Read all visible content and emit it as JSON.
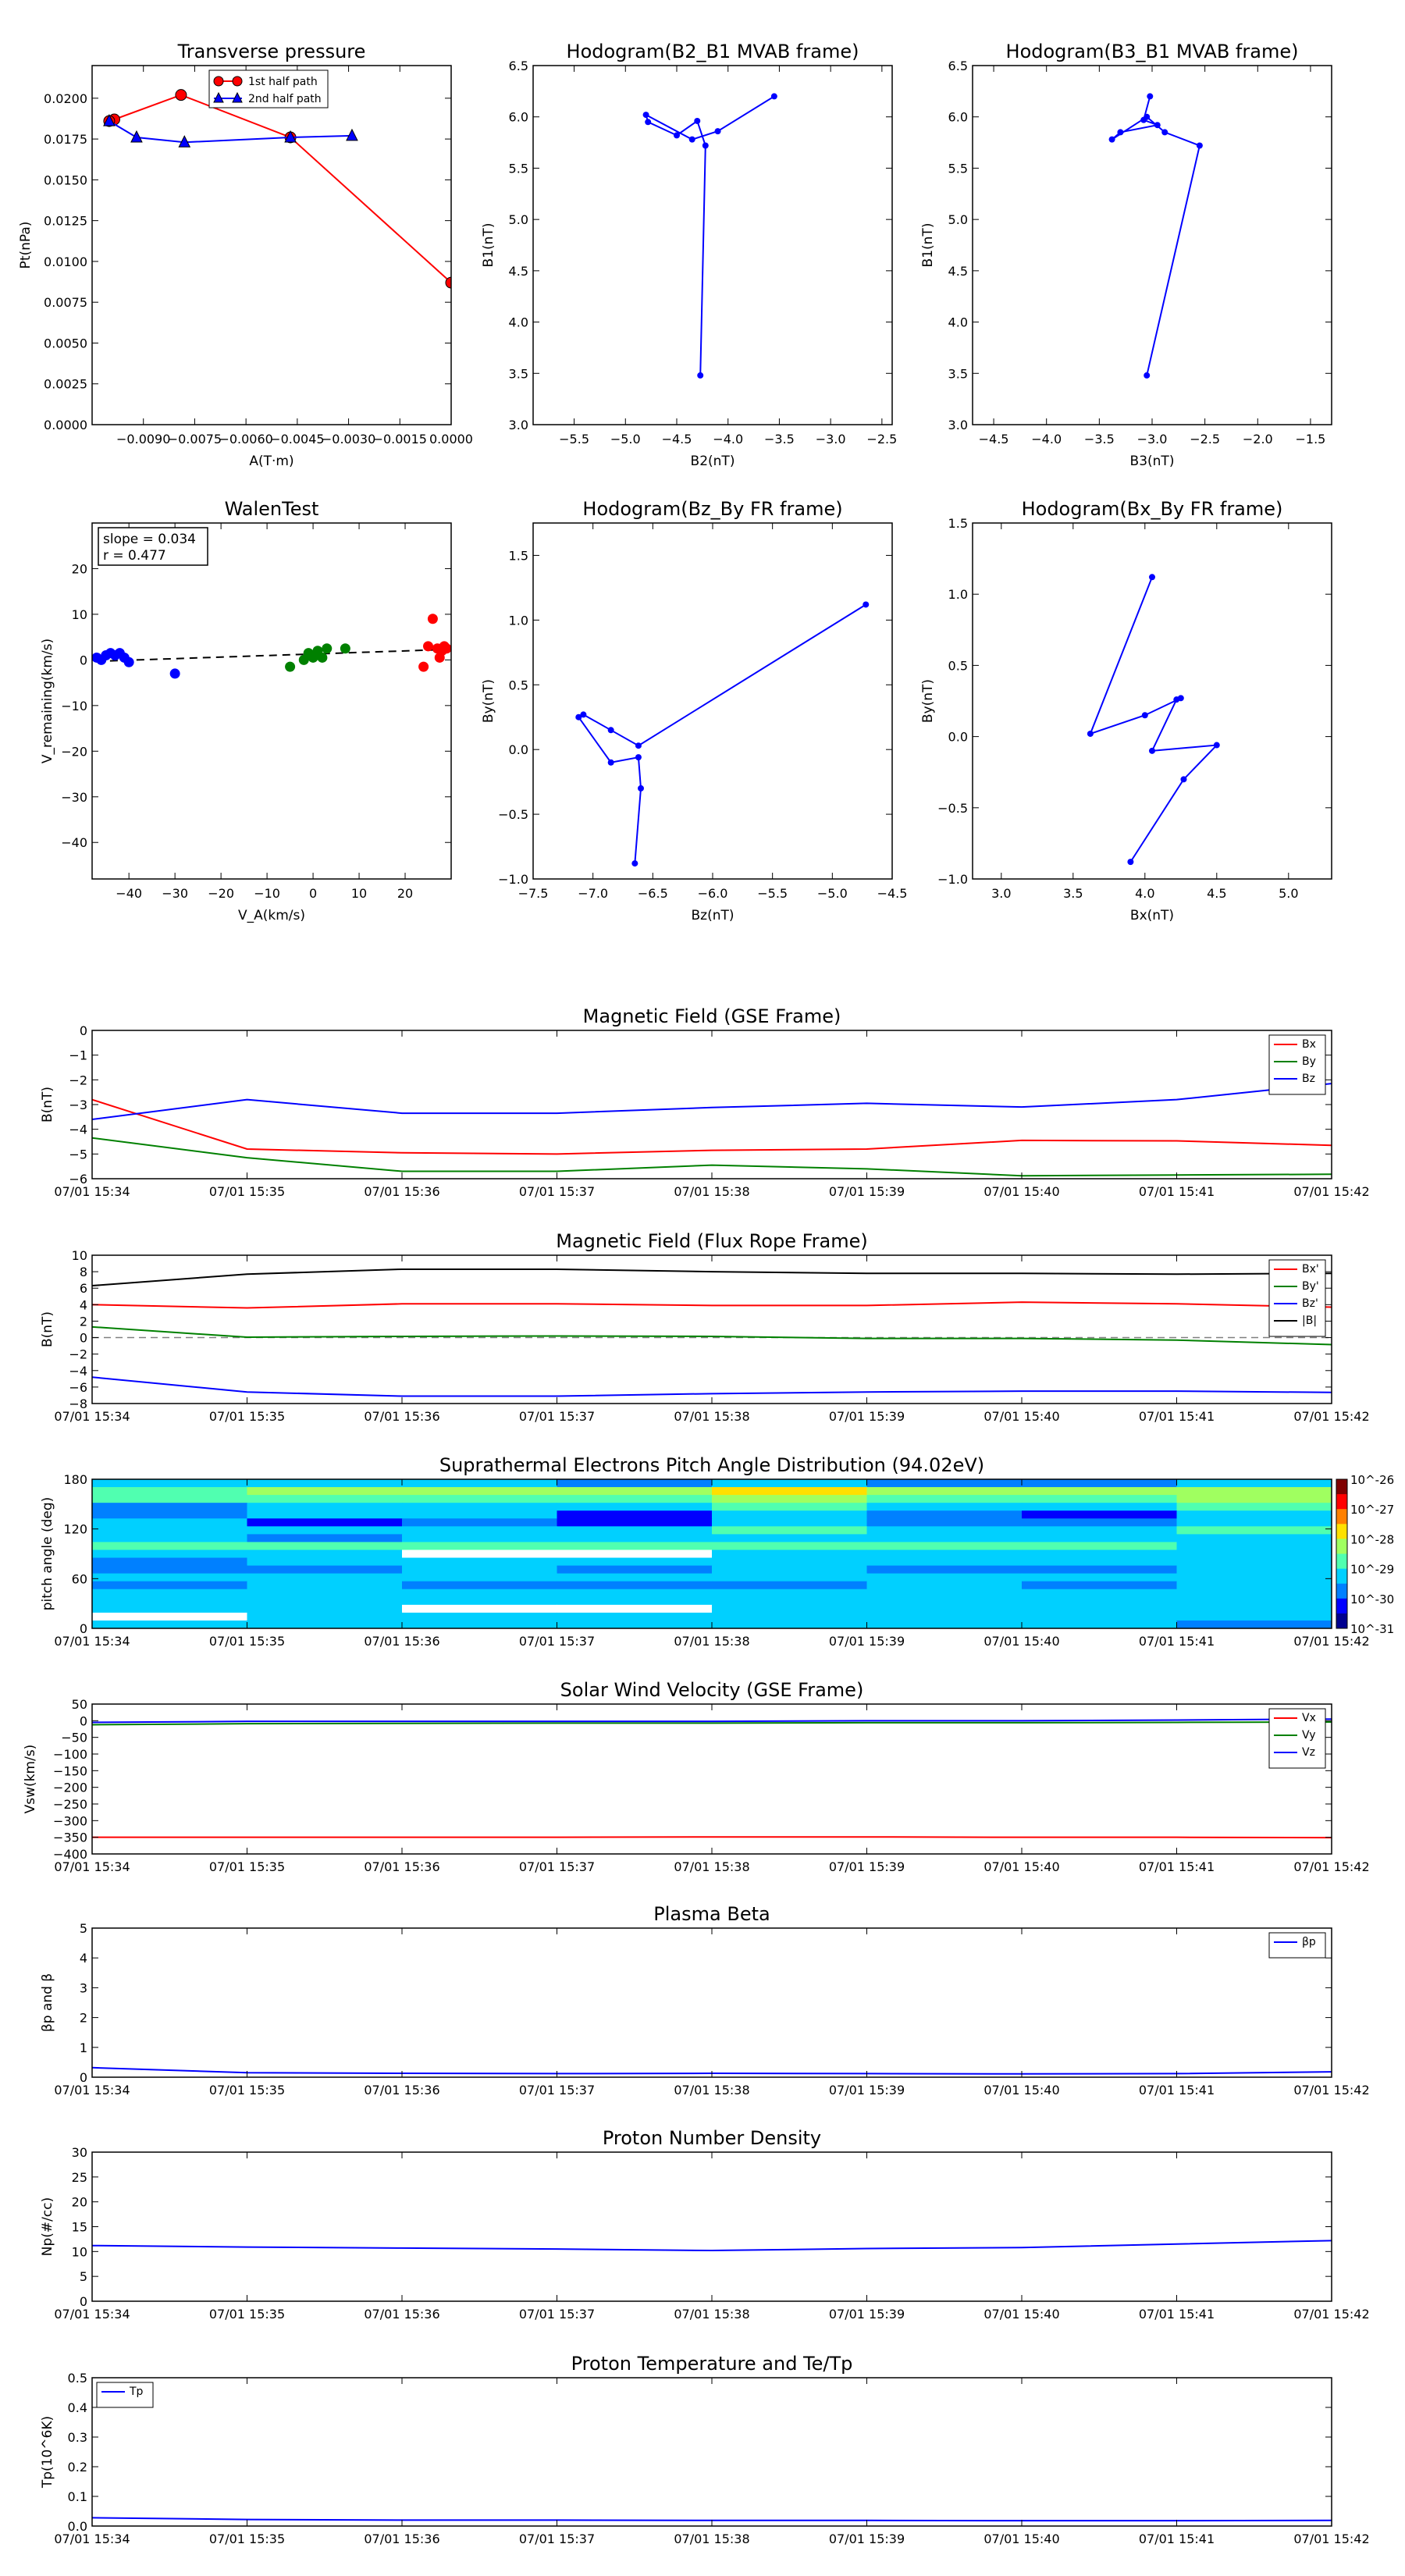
{
  "times": [
    "07/01 15:34",
    "07/01 15:35",
    "07/01 15:36",
    "07/01 15:37",
    "07/01 15:38",
    "07/01 15:39",
    "07/01 15:40",
    "07/01 15:41",
    "07/01 15:42"
  ],
  "colors": {
    "red": "#ff0000",
    "green": "#008000",
    "blue": "#0000ff",
    "black": "#000000",
    "gray": "#808080"
  },
  "chart_data": [
    {
      "id": "pt",
      "type": "line",
      "title": "Transverse pressure",
      "xlabel": "A(T·m)",
      "ylabel": "Pt(nPa)",
      "xlim": [
        -0.0105,
        0.0
      ],
      "ylim": [
        0.0,
        0.022
      ],
      "xticks": [
        -0.009,
        -0.0075,
        -0.006,
        -0.0045,
        -0.003,
        -0.0015,
        0.0
      ],
      "xticklabels": [
        "−0.0090",
        "−0.0075",
        "−0.0060",
        "−0.0045",
        "−0.0030",
        "−0.0015",
        "0.0000"
      ],
      "yticks": [
        0.0,
        0.0025,
        0.005,
        0.0075,
        0.01,
        0.0125,
        0.015,
        0.0175,
        0.02
      ],
      "yticklabels": [
        "0.0000",
        "0.0025",
        "0.0050",
        "0.0075",
        "0.0100",
        "0.0125",
        "0.0150",
        "0.0175",
        "0.0200"
      ],
      "legend": "top-center",
      "series": [
        {
          "name": "1st half path",
          "color": "red",
          "marker": "circle",
          "x": [
            0.0,
            -0.0047,
            -0.0079,
            -0.00985,
            -0.01
          ],
          "y": [
            0.0087,
            0.0176,
            0.0202,
            0.0187,
            0.0186
          ]
        },
        {
          "name": "2nd half path",
          "color": "blue",
          "marker": "triangle",
          "x": [
            -0.01,
            -0.0092,
            -0.0078,
            -0.0047,
            -0.0029
          ],
          "y": [
            0.0186,
            0.0176,
            0.0173,
            0.0176,
            0.0177
          ]
        }
      ]
    },
    {
      "id": "h21",
      "type": "line",
      "title": "Hodogram(B2_B1 MVAB frame)",
      "xlabel": "B2(nT)",
      "ylabel": "B1(nT)",
      "xlim": [
        -5.9,
        -2.4
      ],
      "ylim": [
        3.0,
        6.5
      ],
      "xticks": [
        -5.5,
        -5.0,
        -4.5,
        -4.0,
        -3.5,
        -3.0,
        -2.5
      ],
      "xticklabels": [
        "−5.5",
        "−5.0",
        "−4.5",
        "−4.0",
        "−3.5",
        "−3.0",
        "−2.5"
      ],
      "yticks": [
        3.0,
        3.5,
        4.0,
        4.5,
        5.0,
        5.5,
        6.0,
        6.5
      ],
      "yticklabels": [
        "3.0",
        "3.5",
        "4.0",
        "4.5",
        "5.0",
        "5.5",
        "6.0",
        "6.5"
      ],
      "series": [
        {
          "name": "",
          "color": "blue",
          "marker": "dot",
          "x": [
            -3.55,
            -4.1,
            -4.35,
            -4.8,
            -4.78,
            -4.5,
            -4.3,
            -4.22,
            -4.27
          ],
          "y": [
            6.2,
            5.86,
            5.78,
            6.02,
            5.95,
            5.82,
            5.96,
            5.72,
            3.48
          ]
        }
      ]
    },
    {
      "id": "h31",
      "type": "line",
      "title": "Hodogram(B3_B1 MVAB frame)",
      "xlabel": "B3(nT)",
      "ylabel": "B1(nT)",
      "xlim": [
        -4.7,
        -1.3
      ],
      "ylim": [
        3.0,
        6.5
      ],
      "xticks": [
        -4.5,
        -4.0,
        -3.5,
        -3.0,
        -2.5,
        -2.0,
        -1.5
      ],
      "xticklabels": [
        "−4.5",
        "−4.0",
        "−3.5",
        "−3.0",
        "−2.5",
        "−2.0",
        "−1.5"
      ],
      "yticks": [
        3.0,
        3.5,
        4.0,
        4.5,
        5.0,
        5.5,
        6.0,
        6.5
      ],
      "yticklabels": [
        "3.0",
        "3.5",
        "4.0",
        "4.5",
        "5.0",
        "5.5",
        "6.0",
        "6.5"
      ],
      "series": [
        {
          "name": "",
          "color": "blue",
          "marker": "dot",
          "x": [
            -3.02,
            -3.08,
            -2.95,
            -3.3,
            -3.38,
            -3.05,
            -2.88,
            -2.55,
            -3.05
          ],
          "y": [
            6.2,
            5.97,
            5.92,
            5.85,
            5.78,
            6.0,
            5.85,
            5.72,
            3.48
          ]
        }
      ]
    },
    {
      "id": "walen",
      "type": "scatter",
      "title": "WalenTest",
      "xlabel": "V_A(km/s)",
      "ylabel": "V_remaining(km/s)",
      "xlim": [
        -48,
        30
      ],
      "ylim": [
        -48,
        30
      ],
      "xticks": [
        -40,
        -30,
        -20,
        -10,
        0,
        10,
        20
      ],
      "xticklabels": [
        "−40",
        "−30",
        "−20",
        "−10",
        "0",
        "10",
        "20"
      ],
      "yticks": [
        -40,
        -30,
        -20,
        -10,
        0,
        10,
        20
      ],
      "yticklabels": [
        "−40",
        "−30",
        "−20",
        "−10",
        "0",
        "10",
        "20"
      ],
      "annotation": [
        "slope = 0.034",
        "r = 0.477"
      ],
      "fit": {
        "slope": 0.034,
        "x": [
          -47,
          29
        ]
      },
      "groups": [
        {
          "color": "blue",
          "x": [
            -46,
            -45,
            -44,
            -43,
            -42,
            -41,
            -40,
            -47,
            -30
          ],
          "y": [
            0,
            1,
            1.5,
            1,
            1.5,
            0.5,
            -0.5,
            0.5,
            -3
          ]
        },
        {
          "color": "green",
          "x": [
            -5,
            -2,
            -1,
            0,
            1,
            2,
            3,
            7
          ],
          "y": [
            -1.5,
            0,
            1.5,
            0.5,
            2,
            0.5,
            2.5,
            2.5
          ]
        },
        {
          "color": "red",
          "x": [
            24,
            25,
            26,
            27,
            27.5,
            28,
            28.5,
            29
          ],
          "y": [
            -1.5,
            3,
            9,
            2.5,
            0.5,
            2,
            3,
            2.5
          ]
        }
      ]
    },
    {
      "id": "hzy",
      "type": "line",
      "title": "Hodogram(Bz_By FR frame)",
      "xlabel": "Bz(nT)",
      "ylabel": "By(nT)",
      "xlim": [
        -7.5,
        -4.5
      ],
      "ylim": [
        -1.0,
        1.75
      ],
      "xticks": [
        -7.5,
        -7.0,
        -6.5,
        -6.0,
        -5.5,
        -5.0,
        -4.5
      ],
      "xticklabels": [
        "−7.5",
        "−7.0",
        "−6.5",
        "−6.0",
        "−5.5",
        "−5.0",
        "−4.5"
      ],
      "yticks": [
        -1.0,
        -0.5,
        0.0,
        0.5,
        1.0,
        1.5
      ],
      "yticklabels": [
        "−1.0",
        "−0.5",
        "0.0",
        "0.5",
        "1.0",
        "1.5"
      ],
      "series": [
        {
          "name": "",
          "color": "blue",
          "marker": "dot",
          "x": [
            -4.72,
            -6.62,
            -6.85,
            -7.08,
            -7.12,
            -6.85,
            -6.62,
            -6.6,
            -6.65
          ],
          "y": [
            1.12,
            0.03,
            0.15,
            0.27,
            0.25,
            -0.1,
            -0.06,
            -0.3,
            -0.88
          ]
        }
      ]
    },
    {
      "id": "hxy",
      "type": "line",
      "title": "Hodogram(Bx_By FR frame)",
      "xlabel": "Bx(nT)",
      "ylabel": "By(nT)",
      "xlim": [
        2.8,
        5.3
      ],
      "ylim": [
        -1.0,
        1.5
      ],
      "xticks": [
        3.0,
        3.5,
        4.0,
        4.5,
        5.0
      ],
      "xticklabels": [
        "3.0",
        "3.5",
        "4.0",
        "4.5",
        "5.0"
      ],
      "yticks": [
        -1.0,
        -0.5,
        0.0,
        0.5,
        1.0,
        1.5
      ],
      "yticklabels": [
        "−1.0",
        "−0.5",
        "0.0",
        "0.5",
        "1.0",
        "1.5"
      ],
      "series": [
        {
          "name": "",
          "color": "blue",
          "marker": "dot",
          "x": [
            4.05,
            3.62,
            4.0,
            4.25,
            4.22,
            4.05,
            4.5,
            4.27,
            3.9
          ],
          "y": [
            1.12,
            0.02,
            0.15,
            0.27,
            0.26,
            -0.1,
            -0.06,
            -0.3,
            -0.88
          ]
        }
      ]
    },
    {
      "id": "bgse",
      "type": "line",
      "title": "Magnetic Field (GSE Frame)",
      "ylabel": "B(nT)",
      "ylim": [
        -6,
        0
      ],
      "yticks": [
        -6,
        -5,
        -4,
        -3,
        -2,
        -1,
        0
      ],
      "yticklabels": [
        "−6",
        "−5",
        "−4",
        "−3",
        "−2",
        "−1",
        "0"
      ],
      "legend": "upper-right",
      "series": [
        {
          "name": "Bx",
          "color": "red",
          "values": [
            -2.8,
            -4.8,
            -4.95,
            -5.0,
            -4.85,
            -4.8,
            -4.45,
            -4.47,
            -4.65
          ]
        },
        {
          "name": "By",
          "color": "green",
          "values": [
            -4.35,
            -5.15,
            -5.7,
            -5.7,
            -5.45,
            -5.6,
            -5.88,
            -5.85,
            -5.82
          ]
        },
        {
          "name": "Bz",
          "color": "blue",
          "values": [
            -3.6,
            -2.8,
            -3.35,
            -3.35,
            -3.12,
            -2.95,
            -3.1,
            -2.8,
            -2.15
          ]
        }
      ]
    },
    {
      "id": "bfr",
      "type": "line",
      "title": "Magnetic Field (Flux Rope Frame)",
      "ylabel": "B(nT)",
      "ylim": [
        -8,
        10
      ],
      "yticks": [
        -8,
        -6,
        -4,
        -2,
        0,
        2,
        4,
        6,
        8,
        10
      ],
      "yticklabels": [
        "−8",
        "−6",
        "−4",
        "−2",
        "0",
        "2",
        "4",
        "6",
        "8",
        "10"
      ],
      "legend": "upper-right",
      "zero_line": true,
      "series": [
        {
          "name": "Bx'",
          "color": "red",
          "values": [
            4.0,
            3.6,
            4.1,
            4.1,
            3.9,
            3.9,
            4.3,
            4.1,
            3.7
          ]
        },
        {
          "name": "By'",
          "color": "green",
          "values": [
            1.3,
            0.05,
            0.15,
            0.2,
            0.15,
            -0.1,
            -0.1,
            -0.3,
            -0.85
          ]
        },
        {
          "name": "Bz'",
          "color": "blue",
          "values": [
            -4.8,
            -6.6,
            -7.1,
            -7.1,
            -6.8,
            -6.6,
            -6.5,
            -6.5,
            -6.65
          ]
        },
        {
          "name": "|B|",
          "color": "black",
          "values": [
            6.3,
            7.7,
            8.3,
            8.3,
            8.0,
            7.8,
            7.8,
            7.7,
            7.8
          ]
        }
      ]
    },
    {
      "id": "pad",
      "type": "heatmap",
      "title": "Suprathermal Electrons Pitch Angle Distribution (94.02eV)",
      "ylabel": "pitch angle (deg)",
      "ylim": [
        0,
        180
      ],
      "yticks": [
        0,
        60,
        120,
        180
      ],
      "yticklabels": [
        "0",
        "60",
        "120",
        "180"
      ],
      "colorbar": {
        "labels": [
          "10^-26",
          "10^-27",
          "10^-28",
          "10^-29",
          "10^-30",
          "10^-31"
        ]
      },
      "rows": [
        [
          3,
          3,
          3,
          2,
          3,
          2,
          2,
          3
        ],
        [
          4,
          5,
          5,
          5,
          6,
          5,
          5,
          5
        ],
        [
          4,
          4,
          4,
          4,
          5,
          4,
          4,
          5
        ],
        [
          2,
          3,
          3,
          3,
          4,
          3,
          3,
          4
        ],
        [
          2,
          3,
          3,
          1,
          3,
          2,
          1,
          3
        ],
        [
          3,
          1,
          2,
          1,
          3,
          2,
          2,
          3
        ],
        [
          3,
          3,
          3,
          3,
          4,
          3,
          3,
          4
        ],
        [
          3,
          2,
          3,
          3,
          3,
          3,
          3,
          3
        ],
        [
          4,
          4,
          4,
          4,
          4,
          4,
          4,
          3
        ],
        [
          3,
          3,
          8,
          8,
          3,
          3,
          3,
          3
        ],
        [
          2,
          3,
          3,
          3,
          3,
          3,
          3,
          3
        ],
        [
          2,
          2,
          3,
          2,
          3,
          2,
          2,
          3
        ],
        [
          3,
          3,
          3,
          3,
          3,
          3,
          3,
          3
        ],
        [
          2,
          3,
          2,
          2,
          2,
          3,
          2,
          3
        ],
        [
          3,
          3,
          3,
          3,
          3,
          3,
          3,
          3
        ],
        [
          3,
          3,
          3,
          3,
          3,
          3,
          3,
          3
        ],
        [
          3,
          3,
          8,
          8,
          3,
          3,
          3,
          3
        ],
        [
          8,
          3,
          3,
          3,
          3,
          3,
          3,
          3
        ],
        [
          3,
          3,
          3,
          3,
          3,
          3,
          3,
          2
        ]
      ]
    },
    {
      "id": "vsw",
      "type": "line",
      "title": "Solar Wind Velocity (GSE Frame)",
      "ylabel": "Vsw(km/s)",
      "ylim": [
        -400,
        50
      ],
      "yticks": [
        -400,
        -350,
        -300,
        -250,
        -200,
        -150,
        -100,
        -50,
        0,
        50
      ],
      "yticklabels": [
        "−400",
        "−350",
        "−300",
        "−250",
        "−200",
        "−150",
        "−100",
        "−50",
        "0",
        "50"
      ],
      "legend": "upper-right",
      "series": [
        {
          "name": "Vx",
          "color": "red",
          "values": [
            -350,
            -350,
            -350,
            -350,
            -349,
            -349,
            -350,
            -350,
            -351
          ]
        },
        {
          "name": "Vy",
          "color": "green",
          "values": [
            -12,
            -9,
            -8,
            -7,
            -7,
            -6,
            -6,
            -5,
            -4
          ]
        },
        {
          "name": "Vz",
          "color": "blue",
          "values": [
            -5,
            -2,
            -2,
            -2,
            -2,
            0,
            0,
            2,
            5
          ]
        }
      ]
    },
    {
      "id": "beta",
      "type": "line",
      "title": "Plasma Beta",
      "ylabel": "βp and β",
      "ylim": [
        0,
        5
      ],
      "yticks": [
        0,
        1,
        2,
        3,
        4,
        5
      ],
      "yticklabels": [
        "0",
        "1",
        "2",
        "3",
        "4",
        "5"
      ],
      "legend": "upper-right",
      "series": [
        {
          "name": "βp",
          "color": "blue",
          "values": [
            0.32,
            0.15,
            0.13,
            0.12,
            0.13,
            0.12,
            0.11,
            0.12,
            0.18
          ]
        }
      ]
    },
    {
      "id": "np",
      "type": "line",
      "title": "Proton Number Density",
      "ylabel": "Np(#/cc)",
      "ylim": [
        0,
        30
      ],
      "yticks": [
        0,
        5,
        10,
        15,
        20,
        25,
        30
      ],
      "yticklabels": [
        "0",
        "5",
        "10",
        "15",
        "20",
        "25",
        "30"
      ],
      "series": [
        {
          "name": "",
          "color": "blue",
          "values": [
            11.2,
            10.9,
            10.7,
            10.5,
            10.2,
            10.6,
            10.8,
            11.5,
            12.2
          ]
        }
      ]
    },
    {
      "id": "tp",
      "type": "line",
      "title": "Proton Temperature and Te/Tp",
      "ylabel": "Tp(10^6K)",
      "ylim": [
        0,
        0.5
      ],
      "yticks": [
        0,
        0.1,
        0.2,
        0.3,
        0.4,
        0.5
      ],
      "yticklabels": [
        "0.0",
        "0.1",
        "0.2",
        "0.3",
        "0.4",
        "0.5"
      ],
      "legend": "upper-left",
      "series": [
        {
          "name": "Tp",
          "color": "blue",
          "values": [
            0.028,
            0.022,
            0.02,
            0.02,
            0.019,
            0.019,
            0.018,
            0.018,
            0.019
          ]
        }
      ]
    }
  ]
}
